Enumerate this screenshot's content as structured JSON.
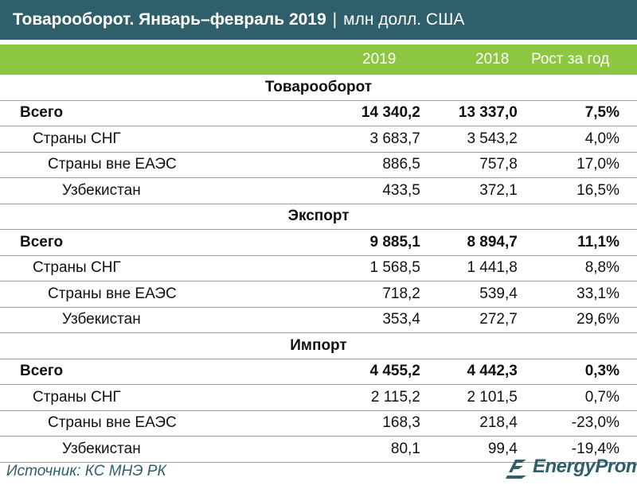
{
  "title": {
    "main": "Товарооборот. Январь–февраль 2019",
    "separator": "|",
    "unit": "млн долл. США"
  },
  "columns": [
    "2019",
    "2018",
    "Рост за год"
  ],
  "sections": [
    {
      "name": "Товарооборот",
      "rows": [
        {
          "label": "Всего",
          "v2019": "14 340,2",
          "v2018": "13 337,0",
          "growth": "7,5%",
          "level": 0,
          "total": true
        },
        {
          "label": "Страны СНГ",
          "v2019": "3 683,7",
          "v2018": "3 543,2",
          "growth": "4,0%",
          "level": 1,
          "total": false
        },
        {
          "label": "Страны вне ЕАЭС",
          "v2019": "886,5",
          "v2018": "757,8",
          "growth": "17,0%",
          "level": 2,
          "total": false
        },
        {
          "label": "Узбекистан",
          "v2019": "433,5",
          "v2018": "372,1",
          "growth": "16,5%",
          "level": 3,
          "total": false
        }
      ]
    },
    {
      "name": "Экспорт",
      "rows": [
        {
          "label": "Всего",
          "v2019": "9 885,1",
          "v2018": "8 894,7",
          "growth": "11,1%",
          "level": 0,
          "total": true
        },
        {
          "label": "Страны СНГ",
          "v2019": "1 568,5",
          "v2018": "1 441,8",
          "growth": "8,8%",
          "level": 1,
          "total": false
        },
        {
          "label": "Страны вне ЕАЭС",
          "v2019": "718,2",
          "v2018": "539,4",
          "growth": "33,1%",
          "level": 2,
          "total": false
        },
        {
          "label": "Узбекистан",
          "v2019": "353,4",
          "v2018": "272,7",
          "growth": "29,6%",
          "level": 3,
          "total": false
        }
      ]
    },
    {
      "name": "Импорт",
      "rows": [
        {
          "label": "Всего",
          "v2019": "4 455,2",
          "v2018": "4 442,3",
          "growth": "0,3%",
          "level": 0,
          "total": true
        },
        {
          "label": "Страны СНГ",
          "v2019": "2 115,2",
          "v2018": "2 101,5",
          "growth": "0,7%",
          "level": 1,
          "total": false
        },
        {
          "label": "Страны вне ЕАЭС",
          "v2019": "168,3",
          "v2018": "218,4",
          "growth": "-23,0%",
          "level": 2,
          "total": false
        },
        {
          "label": "Узбекистан",
          "v2019": "80,1",
          "v2018": "99,4",
          "growth": "-19,4%",
          "level": 3,
          "total": false
        }
      ]
    }
  ],
  "source": "Источник: КС МНЭ РК",
  "logo": {
    "text": "EnergyProm",
    "icon": "energyprom-logo-icon"
  },
  "colors": {
    "title_bg": "#2f5f6b",
    "header_bg": "#8dc641"
  }
}
